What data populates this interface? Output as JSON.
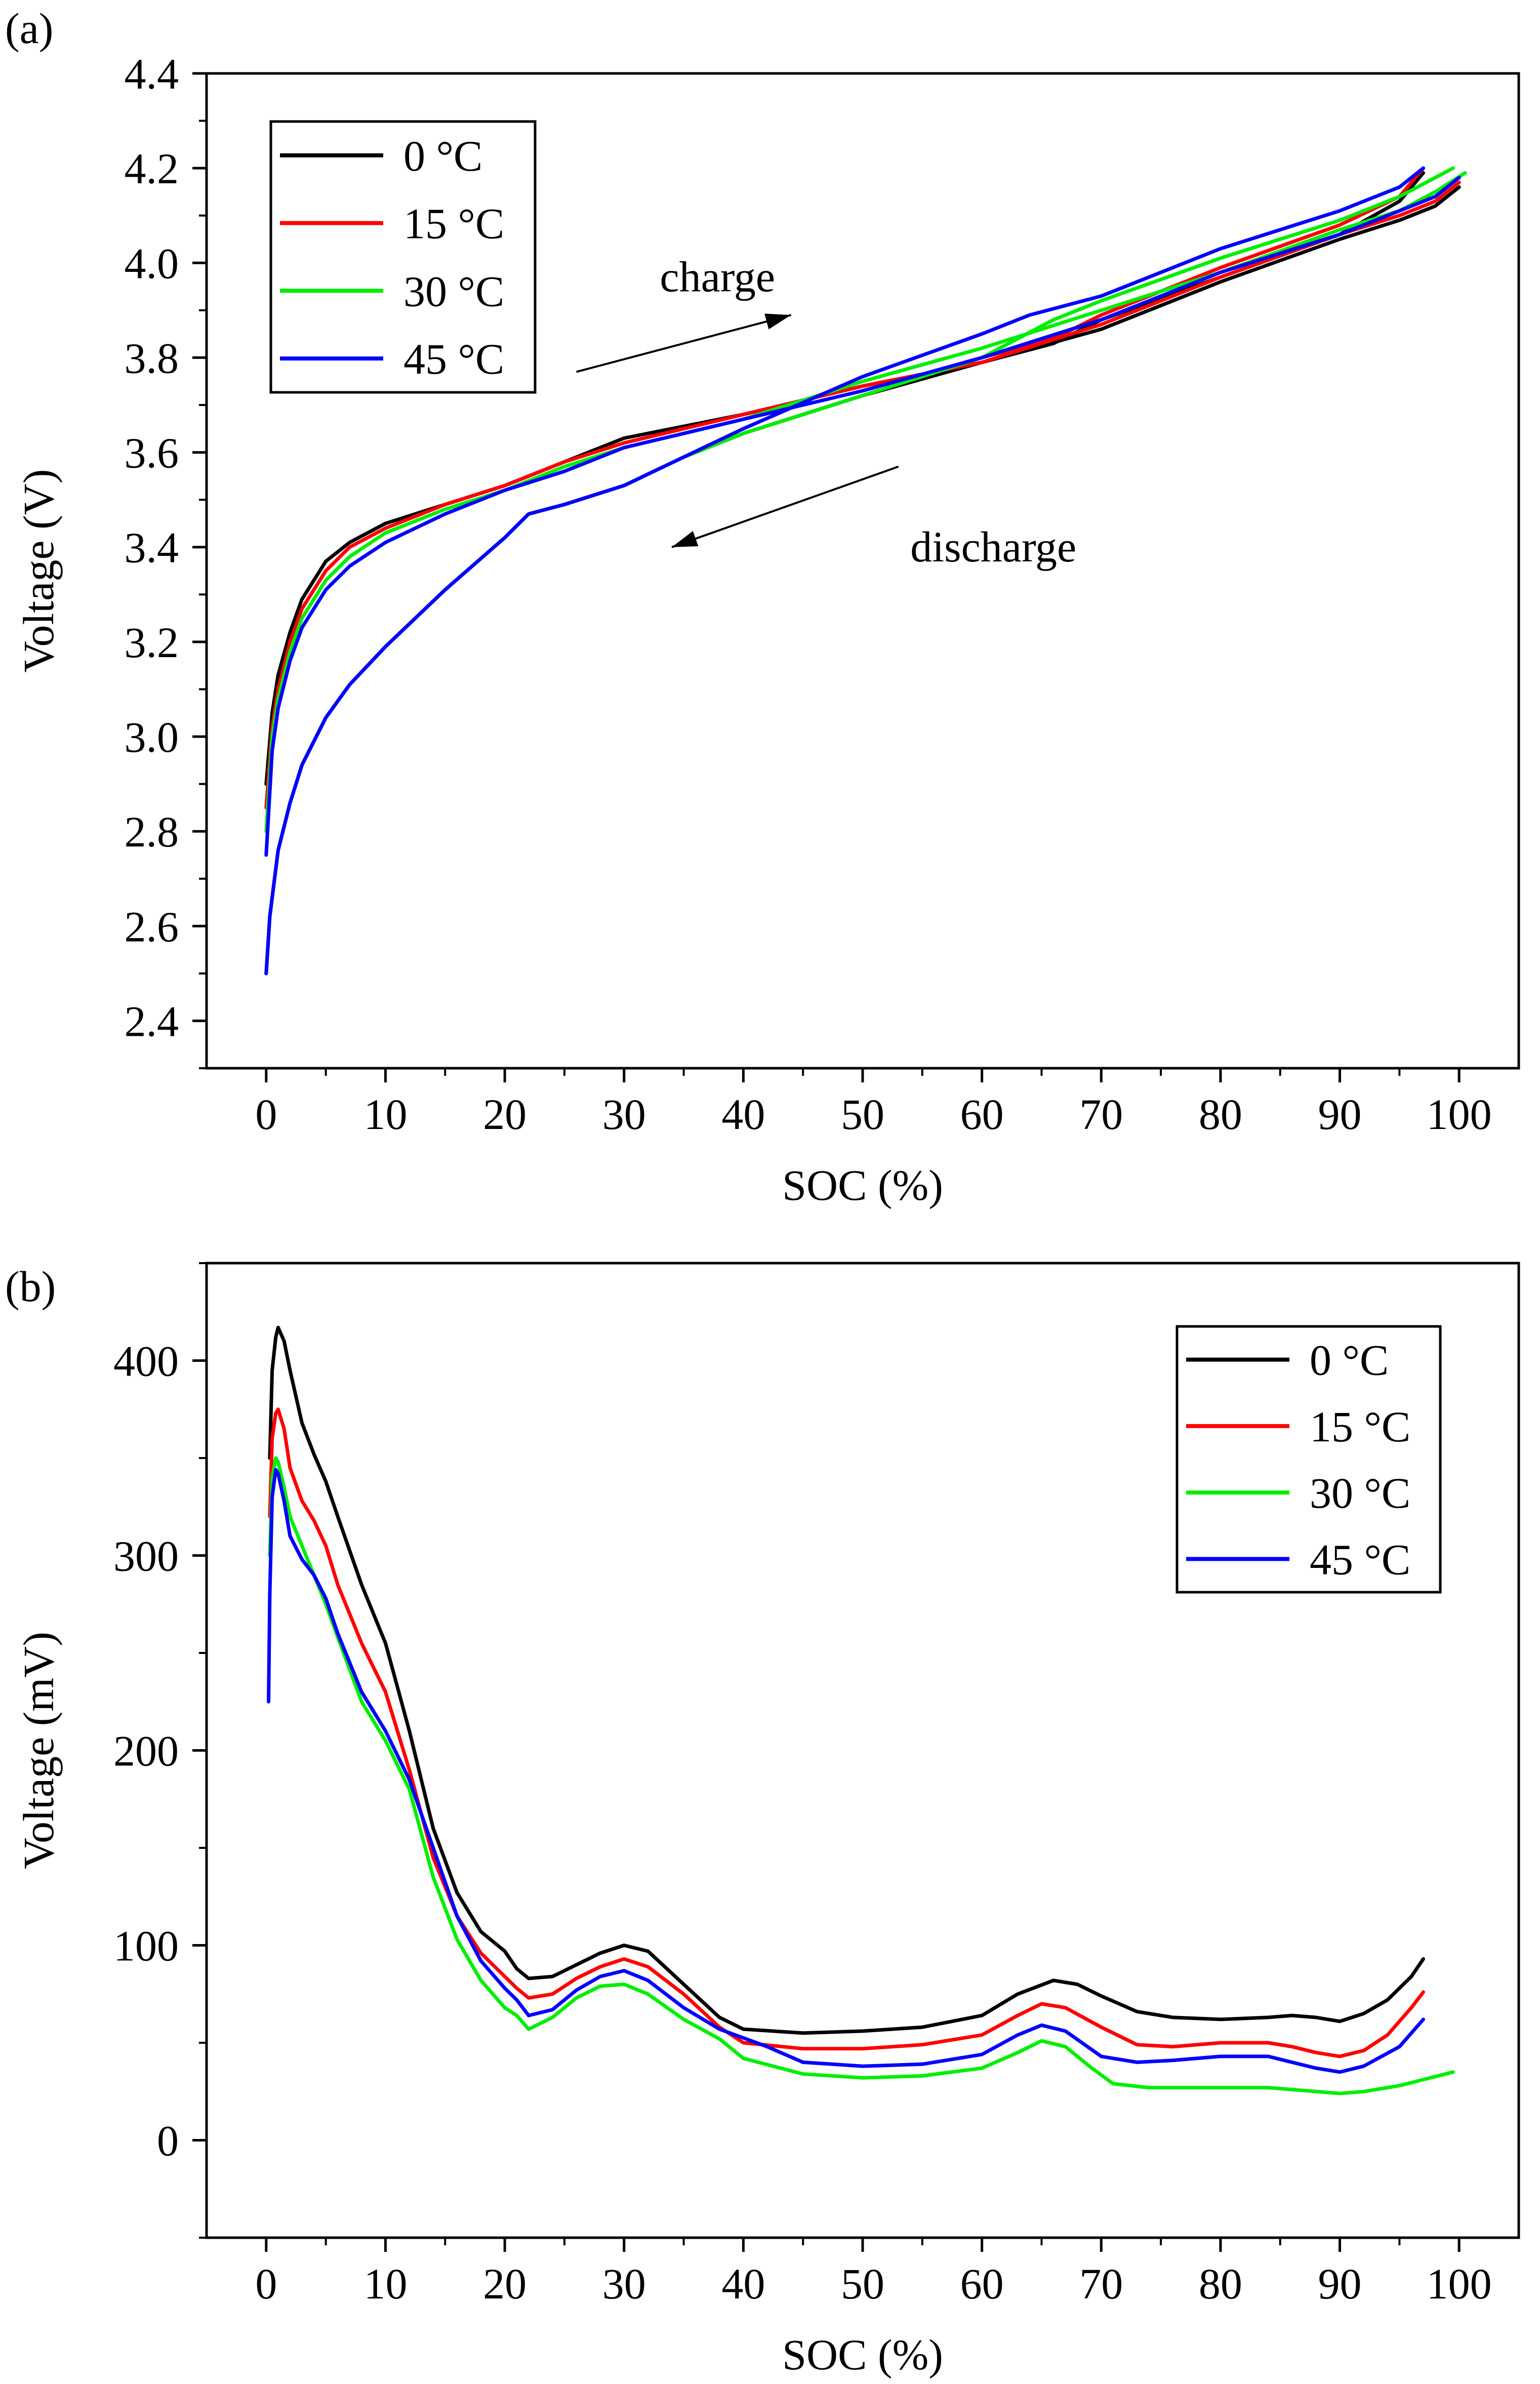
{
  "chart_data": [
    {
      "panel_label": "(a)",
      "type": "line",
      "title": "",
      "xlabel": "SOC (%)",
      "ylabel": "Voltage (V)",
      "xlim": [
        -5,
        105
      ],
      "ylim": [
        2.3,
        4.4
      ],
      "xticks": [
        0,
        10,
        20,
        30,
        40,
        50,
        60,
        70,
        80,
        90,
        100
      ],
      "yticks": [
        2.4,
        2.6,
        2.8,
        3.0,
        3.2,
        3.4,
        3.6,
        3.8,
        4.0,
        4.2,
        4.4
      ],
      "ytick_decimals": 1,
      "grid": false,
      "legend_position": "top-left",
      "annotations": [
        {
          "text": "charge",
          "x": 33,
          "y": 3.94,
          "arrow_from": [
            26,
            3.77
          ],
          "arrow_to": [
            44,
            3.89
          ]
        },
        {
          "text": "discharge",
          "x": 54,
          "y": 3.37,
          "arrow_from": [
            53,
            3.57
          ],
          "arrow_to": [
            34,
            3.4
          ]
        }
      ],
      "series": [
        {
          "name": "0 °C",
          "color": "#000000",
          "charge": {
            "x": [
              0,
              0.5,
              1,
              2,
              3,
              5,
              7,
              10,
              15,
              20,
              25,
              30,
              40,
              50,
              60,
              70,
              80,
              90,
              95,
              98,
              100
            ],
            "y": [
              2.9,
              3.05,
              3.13,
              3.22,
              3.29,
              3.37,
              3.41,
              3.45,
              3.49,
              3.53,
              3.58,
              3.63,
              3.68,
              3.74,
              3.79,
              3.86,
              3.96,
              4.05,
              4.09,
              4.12,
              4.16
            ]
          },
          "discharge": {
            "x": [
              0,
              0.3,
              1,
              2,
              3,
              5,
              7,
              10,
              15,
              20,
              22,
              25,
              30,
              35,
              40,
              50,
              60,
              66,
              70,
              80,
              90,
              95,
              97
            ],
            "y": [
              2.5,
              2.62,
              2.76,
              2.86,
              2.94,
              3.04,
              3.11,
              3.19,
              3.31,
              3.42,
              3.47,
              3.49,
              3.53,
              3.59,
              3.64,
              3.72,
              3.79,
              3.83,
              3.88,
              3.97,
              4.06,
              4.13,
              4.19
            ]
          }
        },
        {
          "name": "15 °C",
          "color": "#ff0000",
          "charge": {
            "x": [
              0,
              0.5,
              1,
              2,
              3,
              5,
              7,
              10,
              15,
              20,
              25,
              30,
              40,
              50,
              60,
              70,
              80,
              90,
              95,
              98,
              100
            ],
            "y": [
              2.85,
              3.02,
              3.1,
              3.2,
              3.27,
              3.35,
              3.4,
              3.44,
              3.49,
              3.53,
              3.58,
              3.62,
              3.68,
              3.74,
              3.79,
              3.87,
              3.97,
              4.06,
              4.1,
              4.13,
              4.17
            ]
          },
          "discharge": {
            "x": [
              0,
              0.3,
              1,
              2,
              3,
              5,
              7,
              10,
              15,
              20,
              22,
              25,
              30,
              35,
              40,
              50,
              60,
              66,
              70,
              80,
              90,
              95,
              97
            ],
            "y": [
              2.5,
              2.62,
              2.76,
              2.86,
              2.94,
              3.04,
              3.11,
              3.19,
              3.31,
              3.42,
              3.47,
              3.49,
              3.53,
              3.59,
              3.64,
              3.72,
              3.8,
              3.84,
              3.89,
              3.99,
              4.08,
              4.14,
              4.2
            ]
          }
        },
        {
          "name": "30 °C",
          "color": "#00ee00",
          "charge": {
            "x": [
              0,
              0.5,
              1,
              2,
              3,
              5,
              7,
              10,
              15,
              20,
              25,
              30,
              40,
              50,
              60,
              70,
              80,
              90,
              95,
              98,
              100.5
            ],
            "y": [
              2.8,
              3.0,
              3.08,
              3.18,
              3.25,
              3.33,
              3.38,
              3.43,
              3.48,
              3.52,
              3.57,
              3.61,
              3.67,
              3.75,
              3.82,
              3.9,
              3.98,
              4.07,
              4.11,
              4.15,
              4.19
            ]
          },
          "discharge": {
            "x": [
              0,
              0.3,
              1,
              2,
              3,
              5,
              7,
              10,
              15,
              20,
              22,
              25,
              30,
              35,
              40,
              50,
              60,
              66,
              70,
              80,
              90,
              95,
              99.5
            ],
            "y": [
              2.5,
              2.62,
              2.76,
              2.86,
              2.94,
              3.04,
              3.11,
              3.19,
              3.31,
              3.42,
              3.47,
              3.49,
              3.53,
              3.59,
              3.64,
              3.72,
              3.8,
              3.88,
              3.92,
              4.01,
              4.09,
              4.14,
              4.2
            ]
          }
        },
        {
          "name": "45 °C",
          "color": "#0000ff",
          "charge": {
            "x": [
              0,
              0.5,
              1,
              2,
              3,
              5,
              7,
              10,
              15,
              20,
              25,
              30,
              40,
              50,
              60,
              70,
              80,
              90,
              95,
              98,
              100
            ],
            "y": [
              2.75,
              2.97,
              3.06,
              3.16,
              3.23,
              3.31,
              3.36,
              3.41,
              3.47,
              3.52,
              3.56,
              3.61,
              3.67,
              3.73,
              3.8,
              3.88,
              3.98,
              4.06,
              4.11,
              4.14,
              4.18
            ]
          },
          "discharge": {
            "x": [
              0,
              0.3,
              1,
              2,
              3,
              5,
              7,
              10,
              15,
              20,
              22,
              25,
              30,
              35,
              40,
              50,
              60,
              64,
              70,
              80,
              90,
              95,
              97
            ],
            "y": [
              2.5,
              2.62,
              2.76,
              2.86,
              2.94,
              3.04,
              3.11,
              3.19,
              3.31,
              3.42,
              3.47,
              3.49,
              3.53,
              3.59,
              3.65,
              3.76,
              3.85,
              3.89,
              3.93,
              4.03,
              4.11,
              4.16,
              4.2
            ]
          }
        }
      ]
    },
    {
      "panel_label": "(b)",
      "type": "line",
      "title": "",
      "xlabel": "SOC (%)",
      "ylabel": "Voltage (mV)",
      "xlim": [
        -5,
        105
      ],
      "ylim": [
        -50,
        450
      ],
      "xticks": [
        0,
        10,
        20,
        30,
        40,
        50,
        60,
        70,
        80,
        90,
        100
      ],
      "yticks": [
        0,
        100,
        200,
        300,
        400
      ],
      "ytick_decimals": 0,
      "grid": false,
      "legend_position": "top-right",
      "annotations": [],
      "series": [
        {
          "name": "0 °C",
          "color": "#000000",
          "x": [
            0.3,
            0.5,
            0.8,
            1,
            1.5,
            2,
            3,
            4,
            5,
            6,
            8,
            10,
            12,
            14,
            16,
            18,
            20,
            21,
            22,
            24,
            26,
            28,
            30,
            32,
            35,
            38,
            40,
            45,
            50,
            55,
            60,
            63,
            66,
            68,
            70,
            73,
            76,
            80,
            84,
            86,
            88,
            90,
            92,
            94,
            96,
            97
          ],
          "y": [
            350,
            395,
            412,
            417,
            410,
            395,
            368,
            352,
            338,
            320,
            285,
            255,
            210,
            160,
            127,
            107,
            97,
            88,
            83,
            84,
            90,
            96,
            100,
            97,
            80,
            63,
            57,
            55,
            56,
            58,
            64,
            75,
            82,
            80,
            74,
            66,
            63,
            62,
            63,
            64,
            63,
            61,
            65,
            72,
            84,
            93
          ]
        },
        {
          "name": "15 °C",
          "color": "#ff0000",
          "x": [
            0.3,
            0.5,
            0.8,
            1,
            1.5,
            2,
            3,
            4,
            5,
            6,
            8,
            10,
            12,
            14,
            16,
            18,
            20,
            21,
            22,
            24,
            26,
            28,
            30,
            32,
            35,
            38,
            40,
            45,
            50,
            55,
            60,
            63,
            65,
            67,
            70,
            73,
            76,
            80,
            84,
            86,
            88,
            90,
            92,
            94,
            96,
            97
          ],
          "y": [
            320,
            360,
            373,
            375,
            365,
            345,
            328,
            318,
            305,
            285,
            255,
            230,
            190,
            145,
            115,
            96,
            84,
            78,
            73,
            75,
            83,
            89,
            93,
            89,
            75,
            58,
            50,
            47,
            47,
            49,
            54,
            64,
            70,
            68,
            58,
            49,
            48,
            50,
            50,
            48,
            45,
            43,
            46,
            54,
            68,
            76
          ]
        },
        {
          "name": "30 °C",
          "color": "#00ee00",
          "x": [
            0.3,
            0.5,
            0.8,
            1,
            1.5,
            2,
            3,
            4,
            5,
            6,
            8,
            10,
            12,
            14,
            16,
            18,
            20,
            21,
            22,
            24,
            26,
            28,
            30,
            32,
            35,
            38,
            40,
            45,
            50,
            55,
            60,
            63,
            65,
            67,
            69,
            71,
            74,
            80,
            84,
            88,
            90,
            92,
            95,
            99.5
          ],
          "y": [
            300,
            340,
            350,
            348,
            335,
            320,
            305,
            290,
            275,
            258,
            225,
            205,
            180,
            135,
            103,
            82,
            68,
            64,
            57,
            63,
            73,
            79,
            80,
            75,
            62,
            52,
            42,
            34,
            32,
            33,
            37,
            45,
            51,
            48,
            38,
            29,
            27,
            27,
            27,
            25,
            24,
            25,
            28,
            35
          ]
        },
        {
          "name": "45 °C",
          "color": "#0000ff",
          "x": [
            0.2,
            0.3,
            0.5,
            0.8,
            1,
            1.5,
            2,
            3,
            4,
            5,
            6,
            8,
            10,
            12,
            14,
            16,
            18,
            20,
            21,
            22,
            24,
            26,
            28,
            30,
            32,
            35,
            38,
            42,
            45,
            50,
            55,
            60,
            63,
            65,
            67,
            70,
            73,
            76,
            80,
            84,
            88,
            90,
            92,
            95,
            97
          ],
          "y": [
            225,
            280,
            330,
            344,
            342,
            328,
            310,
            298,
            290,
            278,
            260,
            230,
            210,
            185,
            150,
            115,
            92,
            78,
            72,
            64,
            67,
            77,
            84,
            87,
            82,
            68,
            57,
            48,
            40,
            38,
            39,
            44,
            54,
            59,
            56,
            43,
            40,
            41,
            43,
            43,
            37,
            35,
            38,
            48,
            62
          ]
        }
      ]
    }
  ]
}
